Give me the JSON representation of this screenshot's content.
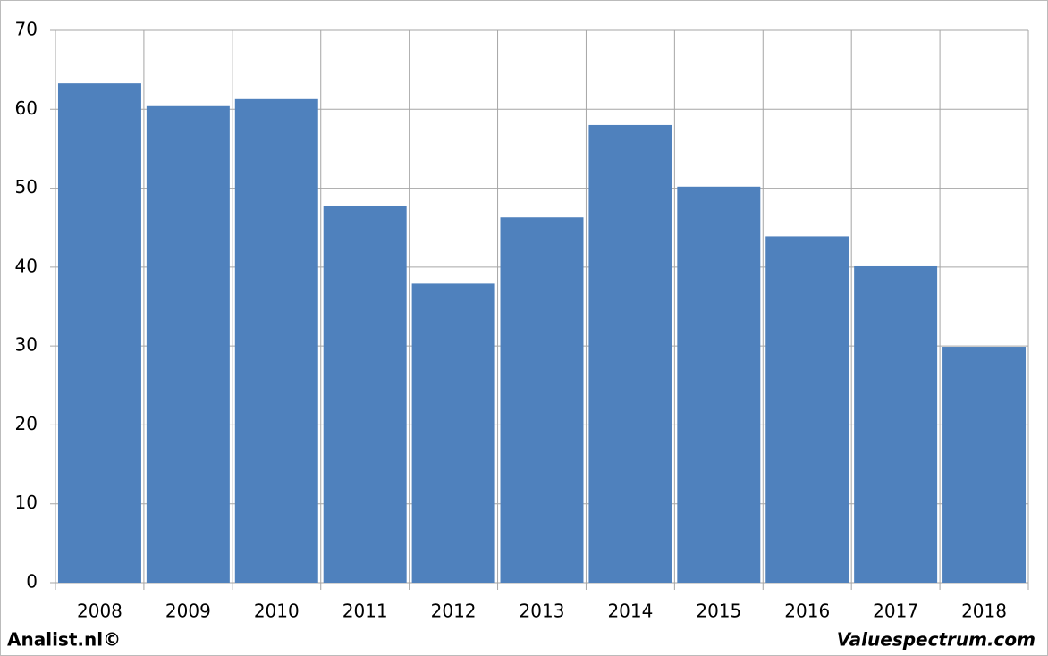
{
  "chart_data": {
    "type": "bar",
    "categories": [
      "2008",
      "2009",
      "2010",
      "2011",
      "2012",
      "2013",
      "2014",
      "2015",
      "2016",
      "2017",
      "2018"
    ],
    "values": [
      63.3,
      60.4,
      61.3,
      47.8,
      37.9,
      46.3,
      58.0,
      50.2,
      43.9,
      40.1,
      29.9
    ],
    "color": "#4f81bd",
    "ylim": [
      0,
      70
    ],
    "yticks": [
      0,
      10,
      20,
      30,
      40,
      50,
      60,
      70
    ],
    "grid": true,
    "footer_left": "Analist.nl©",
    "footer_right": "Valuespectrum.com"
  }
}
